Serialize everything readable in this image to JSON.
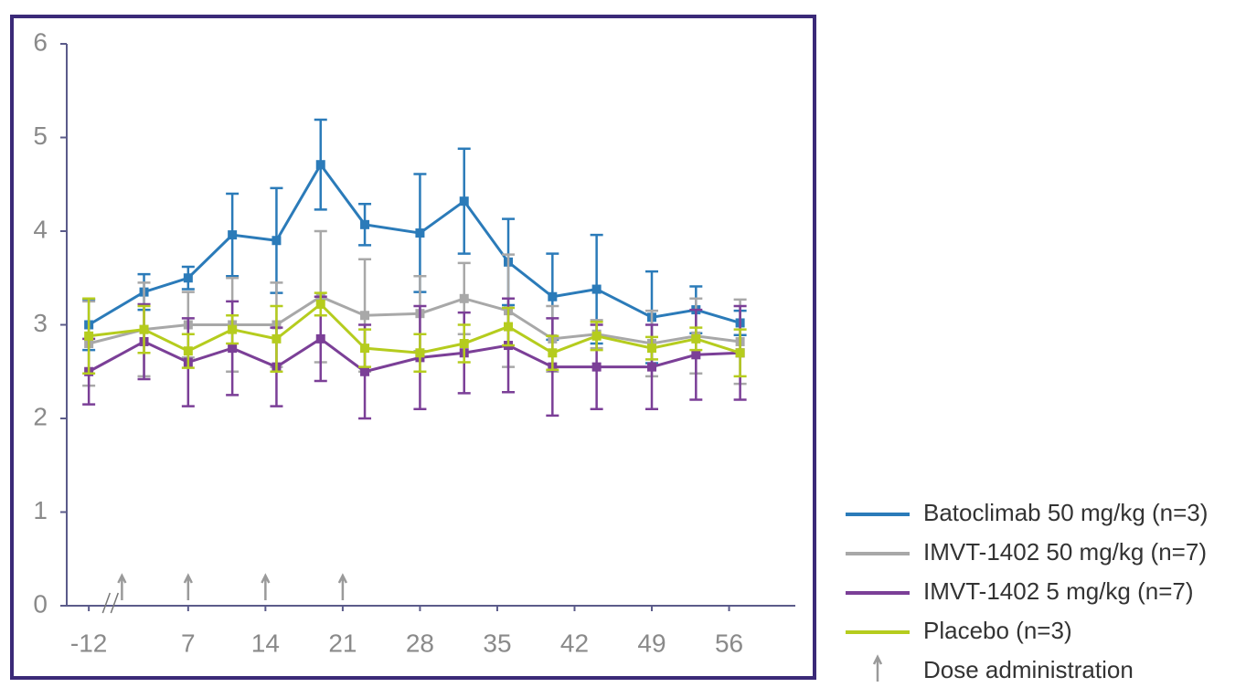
{
  "chart_data": {
    "type": "line",
    "x": [
      -12,
      3,
      7,
      11,
      15,
      19,
      23,
      28,
      32,
      36,
      40,
      44,
      49,
      53,
      57
    ],
    "xlim": [
      -14,
      62
    ],
    "xbreak": [
      -10,
      0
    ],
    "xticks": [
      -12,
      7,
      14,
      21,
      28,
      35,
      42,
      49,
      56
    ],
    "ylim": [
      0,
      6
    ],
    "yticks": [
      0,
      1,
      2,
      3,
      4,
      5,
      6
    ],
    "series": [
      {
        "name": "Batoclimab 50 mg/kg (n=3)",
        "color": "#2b7bb9",
        "values": [
          3.0,
          3.35,
          3.5,
          3.96,
          3.9,
          4.71,
          4.07,
          3.98,
          4.32,
          3.67,
          3.3,
          3.38,
          3.08,
          3.16,
          3.02
        ],
        "errors": [
          0.27,
          0.19,
          0.12,
          0.44,
          0.56,
          0.48,
          0.22,
          0.63,
          0.56,
          0.46,
          0.46,
          0.58,
          0.49,
          0.25,
          0.13
        ]
      },
      {
        "name": "IMVT-1402 50 mg/kg (n=7)",
        "color": "#a8a8a8",
        "values": [
          2.8,
          2.95,
          3.0,
          3.0,
          3.0,
          3.3,
          3.1,
          3.12,
          3.28,
          3.15,
          2.85,
          2.9,
          2.8,
          2.88,
          2.82
        ],
        "errors": [
          0.45,
          0.5,
          0.35,
          0.5,
          0.45,
          0.7,
          0.6,
          0.4,
          0.38,
          0.6,
          0.35,
          0.15,
          0.35,
          0.4,
          0.45
        ]
      },
      {
        "name": "IMVT-1402 5 mg/kg (n=7)",
        "color": "#7b3f97",
        "values": [
          2.5,
          2.82,
          2.6,
          2.75,
          2.55,
          2.85,
          2.5,
          2.65,
          2.7,
          2.78,
          2.55,
          2.55,
          2.55,
          2.68,
          2.7
        ],
        "errors": [
          0.35,
          0.4,
          0.47,
          0.5,
          0.42,
          0.45,
          0.5,
          0.55,
          0.43,
          0.5,
          0.52,
          0.45,
          0.45,
          0.48,
          0.5
        ]
      },
      {
        "name": "Placebo (n=3)",
        "color": "#b5cc1e",
        "values": [
          2.88,
          2.95,
          2.72,
          2.95,
          2.85,
          3.22,
          2.75,
          2.7,
          2.8,
          2.98,
          2.7,
          2.88,
          2.75,
          2.85,
          2.7
        ],
        "errors": [
          0.4,
          0.25,
          0.18,
          0.15,
          0.35,
          0.12,
          0.2,
          0.2,
          0.2,
          0.2,
          0.18,
          0.15,
          0.12,
          0.12,
          0.25
        ]
      }
    ],
    "dose_days": [
      1,
      7,
      14,
      21
    ],
    "dose_label": "Dose administration",
    "dose_color": "#9a9a9a"
  }
}
